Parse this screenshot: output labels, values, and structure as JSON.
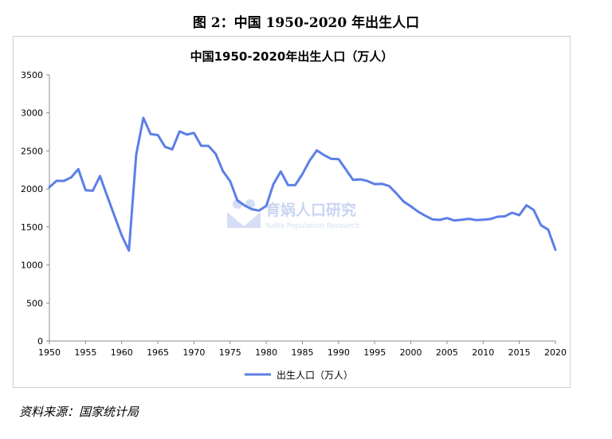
{
  "figure": {
    "title": "图 2：中国 1950-2020 年出生人口",
    "source": "资料来源：国家统计局"
  },
  "watermark": {
    "name": "育娲人口研究",
    "name_en": "YuWa Population Research",
    "icon": "yuwa-logo-icon",
    "color": "#b9c8ee"
  },
  "chart_data": {
    "type": "line",
    "title": "中国1950-2020年出生人口（万人）",
    "xlabel": "",
    "ylabel": "",
    "xlim": [
      1950,
      2020
    ],
    "ylim": [
      0,
      3500
    ],
    "xticks": [
      1950,
      1955,
      1960,
      1965,
      1970,
      1975,
      1980,
      1985,
      1990,
      1995,
      2000,
      2005,
      2010,
      2015,
      2020
    ],
    "yticks": [
      0,
      500,
      1000,
      1500,
      2000,
      2500,
      3000,
      3500
    ],
    "grid": false,
    "legend": "bottom-center",
    "x": [
      1950,
      1951,
      1952,
      1953,
      1954,
      1955,
      1956,
      1957,
      1958,
      1959,
      1960,
      1961,
      1962,
      1963,
      1964,
      1965,
      1966,
      1967,
      1968,
      1969,
      1970,
      1971,
      1972,
      1973,
      1974,
      1975,
      1976,
      1977,
      1978,
      1979,
      1980,
      1981,
      1982,
      1983,
      1984,
      1985,
      1986,
      1987,
      1988,
      1989,
      1990,
      1991,
      1992,
      1993,
      1994,
      1995,
      1996,
      1997,
      1998,
      1999,
      2000,
      2001,
      2002,
      2003,
      2004,
      2005,
      2006,
      2007,
      2008,
      2009,
      2010,
      2011,
      2012,
      2013,
      2014,
      2015,
      2016,
      2017,
      2018,
      2019,
      2020
    ],
    "series": [
      {
        "name": "出生人口（万人）",
        "color": "#5b7fe6",
        "values": [
          2023,
          2107,
          2105,
          2151,
          2260,
          1984,
          1976,
          2169,
          1905,
          1647,
          1389,
          1189,
          2451,
          2934,
          2721,
          2709,
          2554,
          2521,
          2757,
          2715,
          2736,
          2567,
          2566,
          2463,
          2235,
          2102,
          1849,
          1783,
          1733,
          1715,
          1776,
          2064,
          2230,
          2052,
          2050,
          2196,
          2374,
          2508,
          2445,
          2396,
          2391,
          2258,
          2119,
          2126,
          2104,
          2063,
          2067,
          2038,
          1942,
          1834,
          1771,
          1702,
          1647,
          1599,
          1593,
          1617,
          1585,
          1594,
          1608,
          1591,
          1596,
          1604,
          1635,
          1640,
          1687,
          1655,
          1786,
          1723,
          1523,
          1465,
          1200
        ]
      }
    ]
  }
}
